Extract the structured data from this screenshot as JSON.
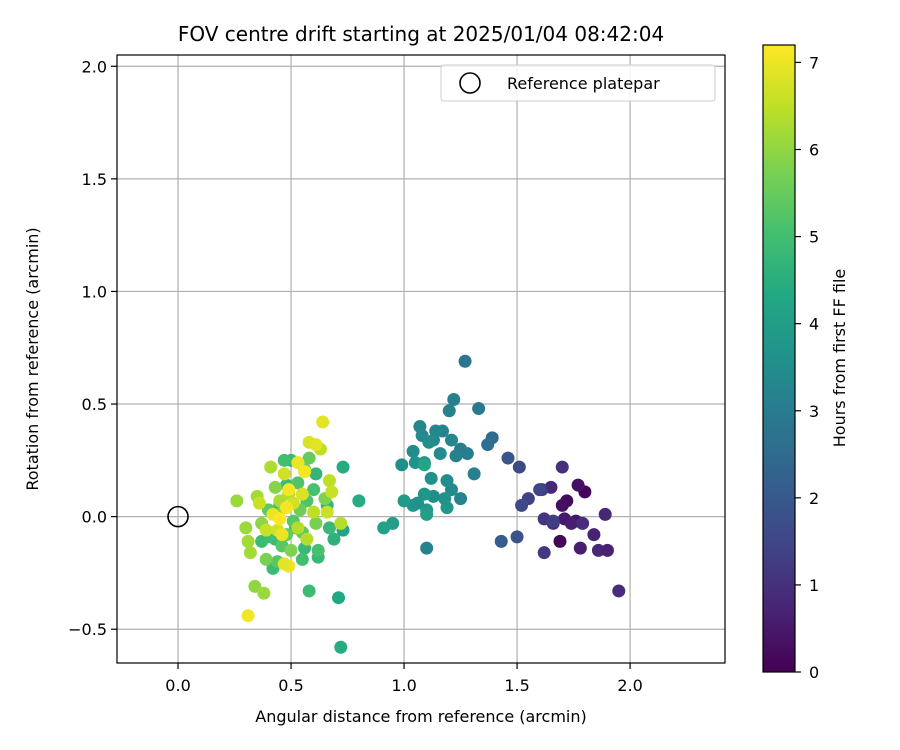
{
  "chart_data": {
    "type": "scatter",
    "title": "FOV centre drift starting at 2025/01/04 08:42:04",
    "xlabel": "Angular distance from reference (arcmin)",
    "ylabel": "Rotation from reference (arcmin)",
    "xlim": [
      -0.27,
      2.42
    ],
    "ylim": [
      -0.65,
      2.05
    ],
    "xticks": [
      0.0,
      0.5,
      1.0,
      1.5,
      2.0
    ],
    "xtick_labels": [
      "0.0",
      "0.5",
      "1.0",
      "1.5",
      "2.0"
    ],
    "yticks": [
      -0.5,
      0.0,
      0.5,
      1.0,
      1.5,
      2.0
    ],
    "ytick_labels": [
      "−0.5",
      "0.0",
      "0.5",
      "1.0",
      "1.5",
      "2.0"
    ],
    "grid": true,
    "colormap": "viridis",
    "colorbar": {
      "label": "Hours from first FF file",
      "range": [
        0,
        7.2
      ],
      "ticks": [
        0,
        1,
        2,
        3,
        4,
        5,
        6,
        7
      ],
      "tick_labels": [
        "0",
        "1",
        "2",
        "3",
        "4",
        "5",
        "6",
        "7"
      ]
    },
    "reference": {
      "label": "Reference platepar",
      "x": 0.0,
      "y": 0.0
    },
    "legend": {
      "placement": "top-right",
      "entries": [
        "Reference platepar"
      ]
    },
    "points": [
      {
        "x": 1.8,
        "y": 0.11,
        "t": 0.1
      },
      {
        "x": 1.77,
        "y": 0.14,
        "t": 0.3
      },
      {
        "x": 1.72,
        "y": 0.07,
        "t": 0.2
      },
      {
        "x": 1.7,
        "y": 0.05,
        "t": 0.3
      },
      {
        "x": 1.69,
        "y": -0.11,
        "t": 0.1
      },
      {
        "x": 1.76,
        "y": -0.02,
        "t": 0.4
      },
      {
        "x": 1.78,
        "y": -0.14,
        "t": 0.6
      },
      {
        "x": 1.71,
        "y": -0.01,
        "t": 0.5
      },
      {
        "x": 1.74,
        "y": -0.03,
        "t": 0.6
      },
      {
        "x": 1.84,
        "y": -0.08,
        "t": 0.7
      },
      {
        "x": 1.86,
        "y": -0.15,
        "t": 0.8
      },
      {
        "x": 1.9,
        "y": -0.15,
        "t": 0.7
      },
      {
        "x": 1.89,
        "y": 0.01,
        "t": 0.8
      },
      {
        "x": 1.95,
        "y": -0.33,
        "t": 0.9
      },
      {
        "x": 1.79,
        "y": -0.03,
        "t": 0.9
      },
      {
        "x": 1.65,
        "y": 0.13,
        "t": 0.8
      },
      {
        "x": 1.7,
        "y": 0.22,
        "t": 1.0
      },
      {
        "x": 1.66,
        "y": -0.03,
        "t": 1.0
      },
      {
        "x": 1.62,
        "y": -0.01,
        "t": 1.1
      },
      {
        "x": 1.61,
        "y": 0.12,
        "t": 1.2
      },
      {
        "x": 1.62,
        "y": -0.16,
        "t": 1.2
      },
      {
        "x": 1.66,
        "y": -0.02,
        "t": 1.3
      },
      {
        "x": 1.55,
        "y": 0.08,
        "t": 1.4
      },
      {
        "x": 1.52,
        "y": 0.05,
        "t": 1.6
      },
      {
        "x": 1.6,
        "y": 0.12,
        "t": 1.5
      },
      {
        "x": 1.51,
        "y": 0.22,
        "t": 1.6
      },
      {
        "x": 1.5,
        "y": -0.09,
        "t": 1.8
      },
      {
        "x": 1.46,
        "y": 0.26,
        "t": 1.9
      },
      {
        "x": 1.43,
        "y": -0.11,
        "t": 2.1
      },
      {
        "x": 1.39,
        "y": 0.35,
        "t": 2.5
      },
      {
        "x": 1.37,
        "y": 0.32,
        "t": 2.6
      },
      {
        "x": 1.33,
        "y": 0.48,
        "t": 2.9
      },
      {
        "x": 1.27,
        "y": 0.69,
        "t": 2.8
      },
      {
        "x": 1.28,
        "y": 0.28,
        "t": 3.0
      },
      {
        "x": 1.31,
        "y": 0.19,
        "t": 3.1
      },
      {
        "x": 1.25,
        "y": 0.3,
        "t": 3.0
      },
      {
        "x": 1.22,
        "y": 0.52,
        "t": 3.1
      },
      {
        "x": 1.2,
        "y": 0.47,
        "t": 3.2
      },
      {
        "x": 1.21,
        "y": 0.34,
        "t": 3.3
      },
      {
        "x": 1.23,
        "y": 0.27,
        "t": 3.1
      },
      {
        "x": 1.17,
        "y": 0.38,
        "t": 3.2
      },
      {
        "x": 1.14,
        "y": 0.38,
        "t": 3.3
      },
      {
        "x": 1.16,
        "y": 0.28,
        "t": 3.4
      },
      {
        "x": 1.13,
        "y": 0.34,
        "t": 3.4
      },
      {
        "x": 1.11,
        "y": 0.33,
        "t": 3.5
      },
      {
        "x": 1.07,
        "y": 0.4,
        "t": 3.3
      },
      {
        "x": 1.08,
        "y": 0.36,
        "t": 3.4
      },
      {
        "x": 1.04,
        "y": 0.29,
        "t": 3.5
      },
      {
        "x": 1.05,
        "y": 0.24,
        "t": 3.6
      },
      {
        "x": 0.99,
        "y": 0.23,
        "t": 3.5
      },
      {
        "x": 1.09,
        "y": 0.24,
        "t": 3.7
      },
      {
        "x": 1.12,
        "y": 0.17,
        "t": 3.6
      },
      {
        "x": 1.19,
        "y": 0.16,
        "t": 3.5
      },
      {
        "x": 1.21,
        "y": 0.12,
        "t": 3.4
      },
      {
        "x": 1.25,
        "y": 0.08,
        "t": 3.2
      },
      {
        "x": 1.19,
        "y": 0.04,
        "t": 3.8
      },
      {
        "x": 1.18,
        "y": 0.08,
        "t": 3.6
      },
      {
        "x": 1.13,
        "y": 0.09,
        "t": 3.5
      },
      {
        "x": 1.09,
        "y": 0.1,
        "t": 3.8
      },
      {
        "x": 1.04,
        "y": 0.05,
        "t": 3.7
      },
      {
        "x": 1.0,
        "y": 0.07,
        "t": 3.9
      },
      {
        "x": 1.1,
        "y": 0.03,
        "t": 3.9
      },
      {
        "x": 1.1,
        "y": 0.01,
        "t": 4.0
      },
      {
        "x": 1.06,
        "y": 0.06,
        "t": 3.6
      },
      {
        "x": 1.1,
        "y": -0.14,
        "t": 3.2
      },
      {
        "x": 0.95,
        "y": -0.03,
        "t": 4.0
      },
      {
        "x": 0.91,
        "y": -0.05,
        "t": 4.1
      },
      {
        "x": 1.09,
        "y": 0.23,
        "t": 4.2
      },
      {
        "x": 0.8,
        "y": 0.07,
        "t": 4.4
      },
      {
        "x": 0.73,
        "y": 0.22,
        "t": 4.4
      },
      {
        "x": 0.73,
        "y": -0.06,
        "t": 4.3
      },
      {
        "x": 0.71,
        "y": -0.36,
        "t": 4.3
      },
      {
        "x": 0.72,
        "y": -0.58,
        "t": 4.4
      },
      {
        "x": 0.69,
        "y": -0.1,
        "t": 4.6
      },
      {
        "x": 0.66,
        "y": 0.05,
        "t": 4.7
      },
      {
        "x": 0.67,
        "y": -0.05,
        "t": 4.8
      },
      {
        "x": 0.62,
        "y": -0.18,
        "t": 4.8
      },
      {
        "x": 0.61,
        "y": 0.19,
        "t": 4.7
      },
      {
        "x": 0.58,
        "y": -0.33,
        "t": 4.9
      },
      {
        "x": 0.56,
        "y": -0.14,
        "t": 4.8
      },
      {
        "x": 0.55,
        "y": -0.19,
        "t": 5.0
      },
      {
        "x": 0.52,
        "y": -0.05,
        "t": 4.9
      },
      {
        "x": 0.5,
        "y": 0.25,
        "t": 4.8
      },
      {
        "x": 0.48,
        "y": 0.14,
        "t": 4.9
      },
      {
        "x": 0.47,
        "y": 0.25,
        "t": 5.0
      },
      {
        "x": 0.45,
        "y": 0.05,
        "t": 4.8
      },
      {
        "x": 0.43,
        "y": -0.1,
        "t": 4.9
      },
      {
        "x": 0.4,
        "y": -0.09,
        "t": 5.0
      },
      {
        "x": 0.37,
        "y": -0.11,
        "t": 4.9
      },
      {
        "x": 0.42,
        "y": -0.23,
        "t": 4.9
      },
      {
        "x": 0.6,
        "y": 0.12,
        "t": 5.1
      },
      {
        "x": 0.57,
        "y": 0.07,
        "t": 5.2
      },
      {
        "x": 0.53,
        "y": 0.15,
        "t": 5.2
      },
      {
        "x": 0.51,
        "y": -0.02,
        "t": 5.3
      },
      {
        "x": 0.62,
        "y": -0.15,
        "t": 5.1
      },
      {
        "x": 0.46,
        "y": -0.13,
        "t": 5.3
      },
      {
        "x": 0.4,
        "y": 0.03,
        "t": 5.4
      },
      {
        "x": 0.44,
        "y": -0.2,
        "t": 5.3
      },
      {
        "x": 0.55,
        "y": -0.07,
        "t": 5.4
      },
      {
        "x": 0.58,
        "y": 0.26,
        "t": 5.5
      },
      {
        "x": 0.56,
        "y": 0.21,
        "t": 5.6
      },
      {
        "x": 0.54,
        "y": 0.03,
        "t": 5.6
      },
      {
        "x": 0.48,
        "y": -0.08,
        "t": 5.5
      },
      {
        "x": 0.39,
        "y": -0.19,
        "t": 5.7
      },
      {
        "x": 0.65,
        "y": 0.08,
        "t": 5.8
      },
      {
        "x": 0.61,
        "y": -0.03,
        "t": 5.7
      },
      {
        "x": 0.5,
        "y": -0.15,
        "t": 5.8
      },
      {
        "x": 0.47,
        "y": 0.04,
        "t": 5.9
      },
      {
        "x": 0.43,
        "y": 0.13,
        "t": 5.9
      },
      {
        "x": 0.37,
        "y": -0.03,
        "t": 6.0
      },
      {
        "x": 0.34,
        "y": -0.31,
        "t": 6.0
      },
      {
        "x": 0.38,
        "y": -0.34,
        "t": 6.1
      },
      {
        "x": 0.3,
        "y": -0.05,
        "t": 6.1
      },
      {
        "x": 0.26,
        "y": 0.07,
        "t": 6.1
      },
      {
        "x": 0.31,
        "y": -0.11,
        "t": 6.2
      },
      {
        "x": 0.32,
        "y": -0.16,
        "t": 6.2
      },
      {
        "x": 0.35,
        "y": 0.09,
        "t": 6.2
      },
      {
        "x": 0.41,
        "y": 0.22,
        "t": 6.3
      },
      {
        "x": 0.45,
        "y": 0.07,
        "t": 6.3
      },
      {
        "x": 0.49,
        "y": 0.1,
        "t": 6.4
      },
      {
        "x": 0.53,
        "y": -0.05,
        "t": 6.4
      },
      {
        "x": 0.57,
        "y": -0.1,
        "t": 6.4
      },
      {
        "x": 0.6,
        "y": 0.02,
        "t": 6.5
      },
      {
        "x": 0.63,
        "y": 0.3,
        "t": 6.5
      },
      {
        "x": 0.67,
        "y": 0.16,
        "t": 6.5
      },
      {
        "x": 0.68,
        "y": 0.11,
        "t": 6.6
      },
      {
        "x": 0.66,
        "y": 0.02,
        "t": 6.6
      },
      {
        "x": 0.72,
        "y": -0.03,
        "t": 6.4
      },
      {
        "x": 0.36,
        "y": 0.06,
        "t": 6.6
      },
      {
        "x": 0.39,
        "y": -0.06,
        "t": 6.6
      },
      {
        "x": 0.44,
        "y": -0.06,
        "t": 6.7
      },
      {
        "x": 0.47,
        "y": 0.19,
        "t": 6.7
      },
      {
        "x": 0.51,
        "y": 0.06,
        "t": 6.7
      },
      {
        "x": 0.55,
        "y": 0.1,
        "t": 6.8
      },
      {
        "x": 0.58,
        "y": 0.33,
        "t": 6.8
      },
      {
        "x": 0.61,
        "y": 0.32,
        "t": 6.9
      },
      {
        "x": 0.64,
        "y": 0.42,
        "t": 6.9
      },
      {
        "x": 0.53,
        "y": 0.24,
        "t": 7.0
      },
      {
        "x": 0.49,
        "y": -0.22,
        "t": 7.0
      },
      {
        "x": 0.47,
        "y": -0.21,
        "t": 6.9
      },
      {
        "x": 0.46,
        "y": -0.08,
        "t": 7.0
      },
      {
        "x": 0.48,
        "y": 0.04,
        "t": 7.1
      },
      {
        "x": 0.42,
        "y": 0.01,
        "t": 7.0
      },
      {
        "x": 0.31,
        "y": -0.44,
        "t": 7.1
      },
      {
        "x": 0.56,
        "y": 0.2,
        "t": 7.1
      },
      {
        "x": 0.49,
        "y": 0.12,
        "t": 7.1
      },
      {
        "x": 0.45,
        "y": -0.01,
        "t": 7.2
      }
    ]
  }
}
